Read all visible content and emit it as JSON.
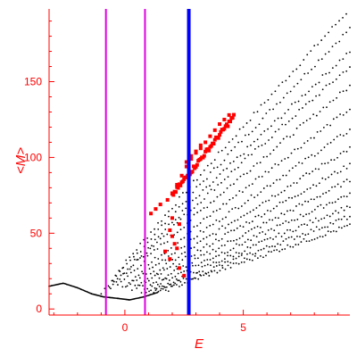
{
  "chart_data": {
    "type": "scatter",
    "title": "",
    "xlabel": "E",
    "ylabel": "<M>",
    "xlim": [
      -3.2,
      9.5
    ],
    "ylim": [
      -4,
      198
    ],
    "xticks": [
      0,
      5
    ],
    "yticks": [
      0,
      50,
      100,
      150
    ],
    "grid": false,
    "colors": {
      "axes": "#ff0000",
      "black_points": "#000000",
      "red_points": "#ff0000",
      "magenta_lines": "#e000e0",
      "blue_line": "#0000ff"
    },
    "vertical_lines": [
      {
        "x": -0.8,
        "color": "#e000e0",
        "style": "magenta"
      },
      {
        "x": 0.85,
        "color": "#e000e0",
        "style": "magenta"
      },
      {
        "x": 2.7,
        "color": "#0000ff",
        "style": "blue-thick"
      }
    ],
    "black_curve_start": [
      [
        -3.2,
        15
      ],
      [
        -2.6,
        17
      ],
      [
        -2.0,
        14
      ],
      [
        -1.4,
        10
      ],
      [
        -0.9,
        8
      ],
      [
        -0.3,
        7
      ],
      [
        0.2,
        6
      ],
      [
        0.8,
        8
      ],
      [
        1.4,
        11
      ]
    ],
    "black_band_lines": [
      {
        "x0": -1.0,
        "y0": 10,
        "x1": 9.5,
        "y1": 198
      },
      {
        "x0": -0.8,
        "y0": 12,
        "x1": 9.5,
        "y1": 185
      },
      {
        "x0": -0.6,
        "y0": 14,
        "x1": 9.5,
        "y1": 170
      },
      {
        "x0": -0.5,
        "y0": 15,
        "x1": 9.5,
        "y1": 160
      },
      {
        "x0": -0.3,
        "y0": 15,
        "x1": 9.5,
        "y1": 147
      },
      {
        "x0": -0.1,
        "y0": 14,
        "x1": 9.5,
        "y1": 132
      },
      {
        "x0": 0.1,
        "y0": 14,
        "x1": 9.5,
        "y1": 118
      },
      {
        "x0": 0.3,
        "y0": 13,
        "x1": 9.5,
        "y1": 106
      },
      {
        "x0": 0.5,
        "y0": 13,
        "x1": 9.5,
        "y1": 95
      },
      {
        "x0": 0.7,
        "y0": 12,
        "x1": 9.5,
        "y1": 85
      },
      {
        "x0": 0.9,
        "y0": 12,
        "x1": 9.5,
        "y1": 76
      },
      {
        "x0": 1.1,
        "y0": 11,
        "x1": 9.5,
        "y1": 68
      },
      {
        "x0": 1.3,
        "y0": 11,
        "x1": 9.5,
        "y1": 61
      },
      {
        "x0": 1.5,
        "y0": 11,
        "x1": 9.5,
        "y1": 55
      }
    ],
    "red_points": [
      [
        1.1,
        63
      ],
      [
        1.3,
        66
      ],
      [
        1.5,
        69
      ],
      [
        1.8,
        72
      ],
      [
        2.0,
        76
      ],
      [
        2.2,
        82
      ],
      [
        2.4,
        88
      ],
      [
        2.6,
        94
      ],
      [
        2.8,
        99
      ],
      [
        3.0,
        103
      ],
      [
        3.2,
        106
      ],
      [
        3.4,
        110
      ],
      [
        3.6,
        114
      ],
      [
        3.8,
        118
      ],
      [
        4.0,
        122
      ],
      [
        4.2,
        125
      ],
      [
        4.4,
        128
      ],
      [
        2.6,
        97
      ],
      [
        2.8,
        101
      ],
      [
        3.0,
        104
      ],
      [
        3.2,
        108
      ],
      [
        1.9,
        52
      ],
      [
        2.0,
        48
      ],
      [
        2.1,
        43
      ],
      [
        2.2,
        40
      ],
      [
        1.7,
        38
      ],
      [
        1.9,
        33
      ],
      [
        2.3,
        27
      ],
      [
        2.5,
        22
      ],
      [
        2.0,
        60
      ],
      [
        2.3,
        56
      ]
    ]
  }
}
